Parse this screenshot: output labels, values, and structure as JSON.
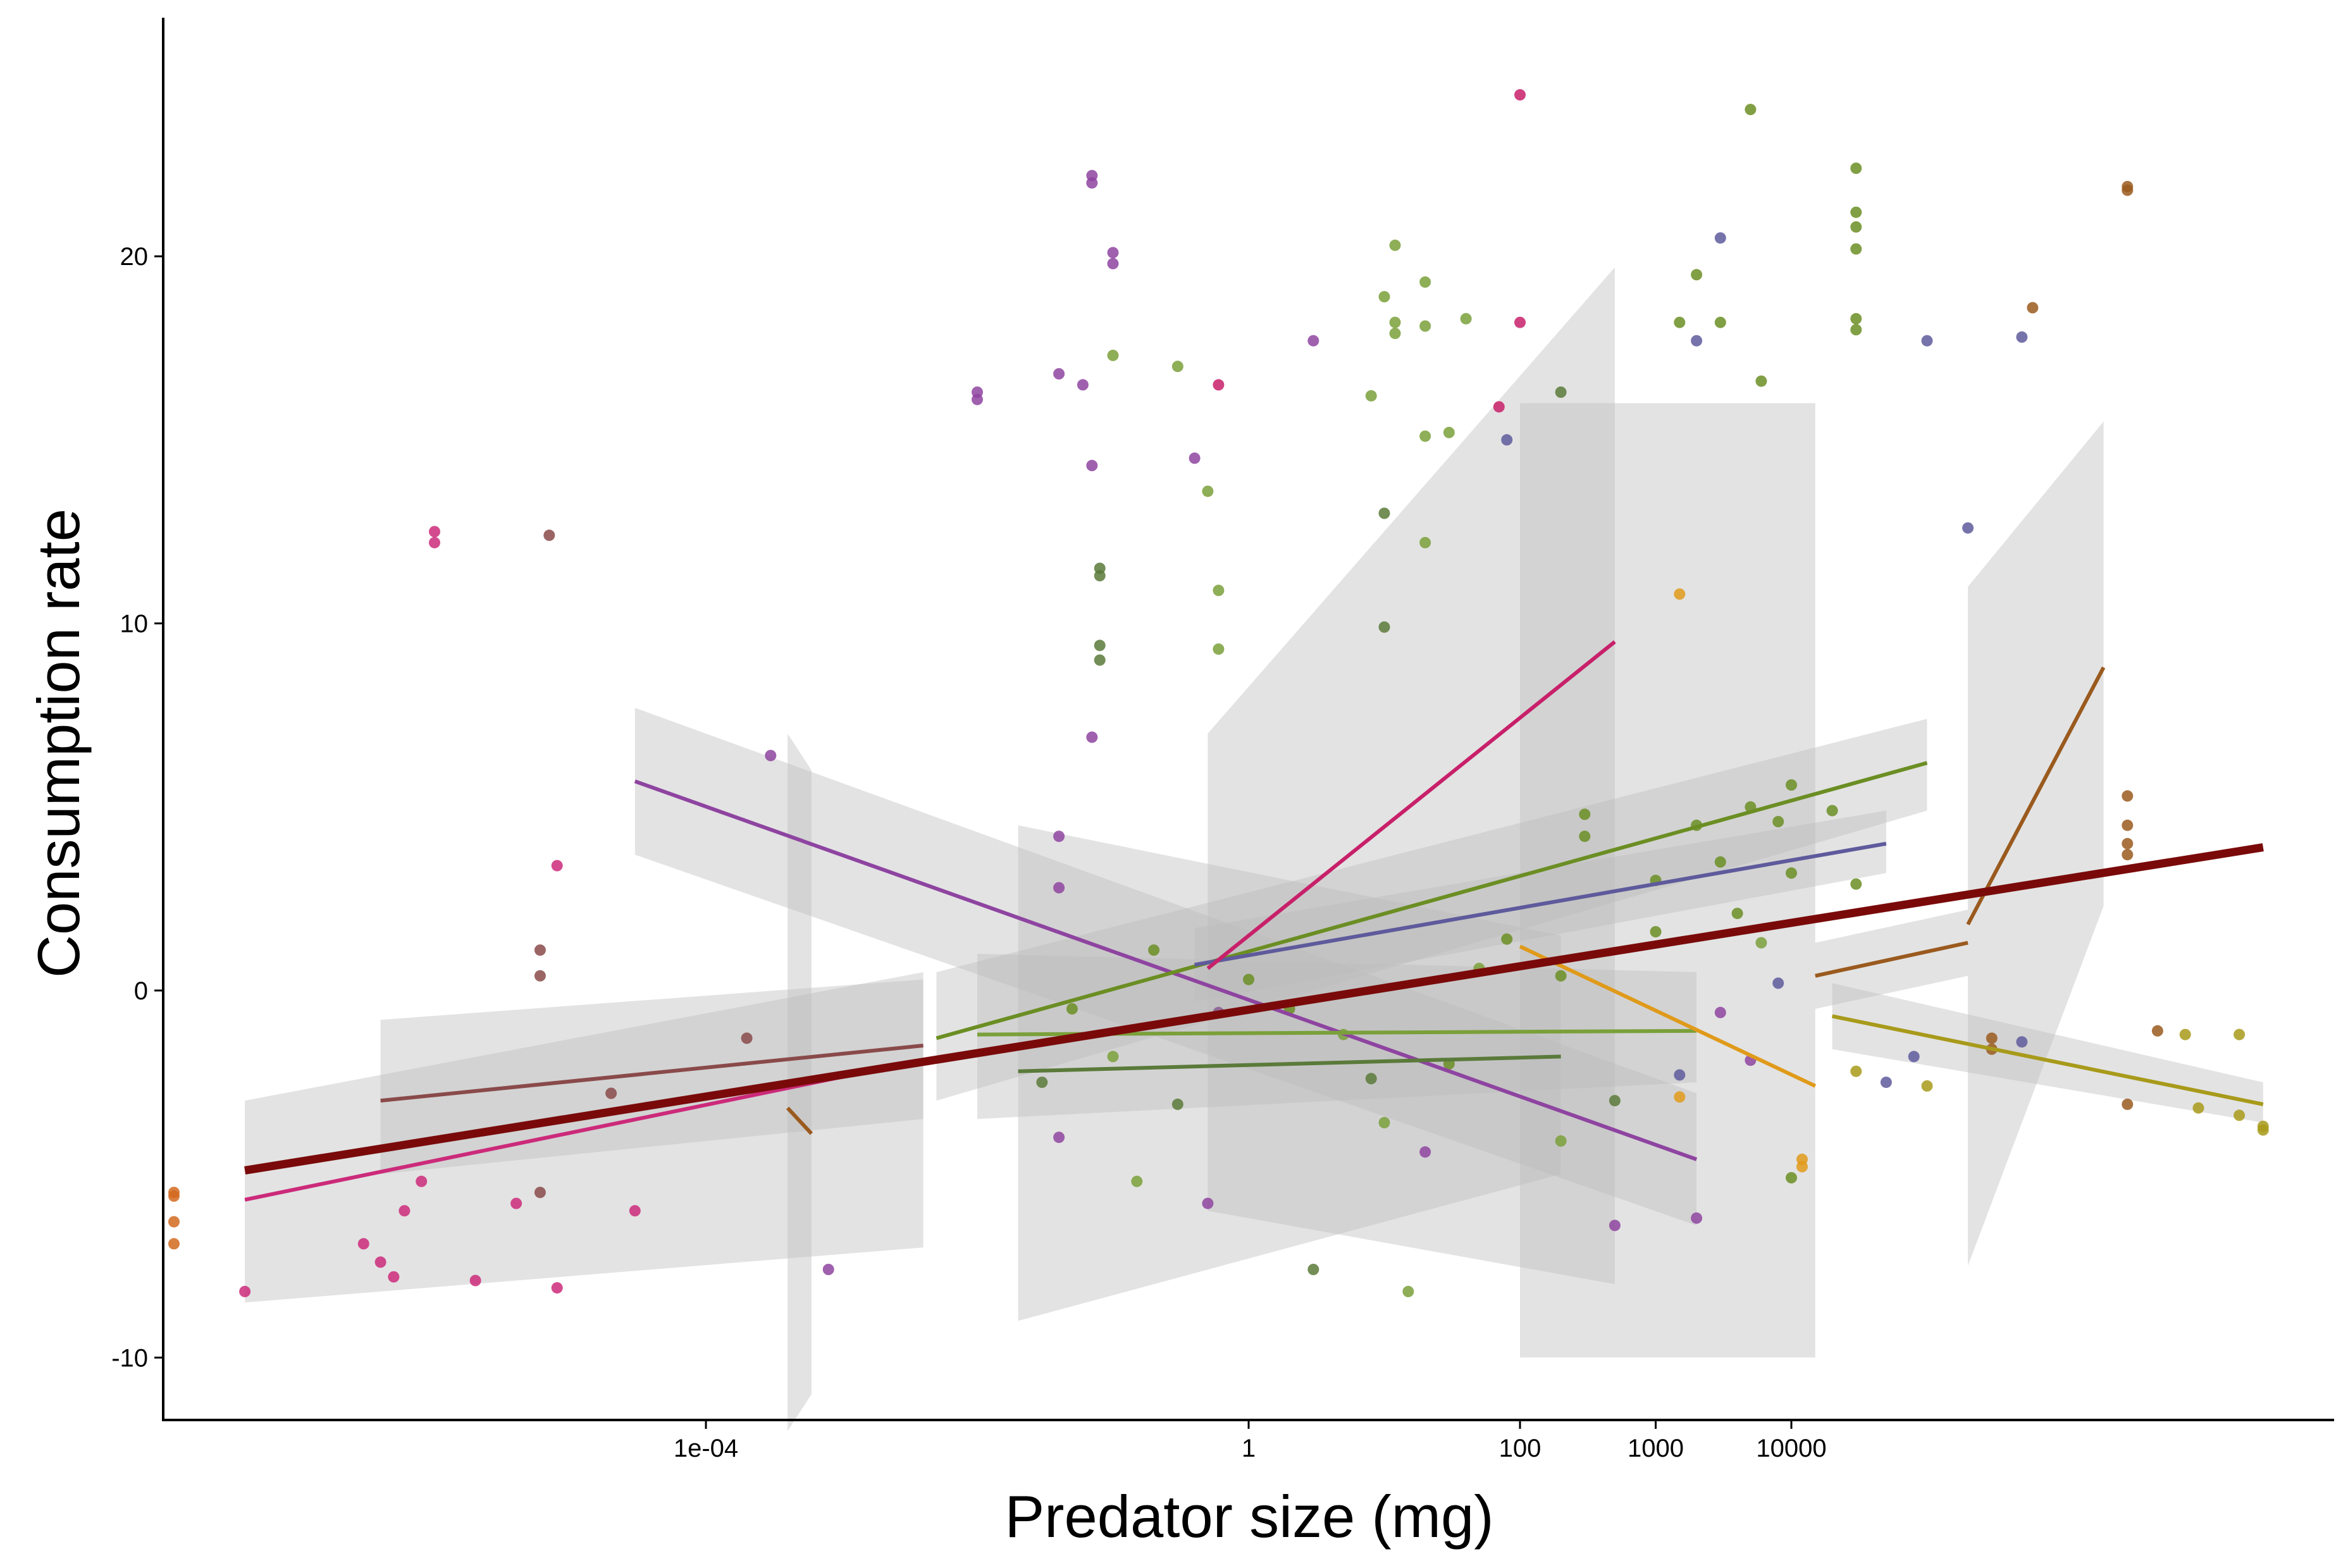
{
  "chart_data": {
    "type": "scatter",
    "title": "",
    "xlabel": "Predator size (mg)",
    "ylabel": "Consumption rate",
    "x_scale": "log10",
    "xlim": [
      1e-08,
      100000000.0
    ],
    "ylim": [
      -11.7,
      26.5
    ],
    "x_ticks": [
      0.0001,
      1,
      100,
      1000,
      10000
    ],
    "x_tick_labels": [
      "1e-04",
      "1",
      "100",
      "1000",
      "10000"
    ],
    "y_ticks": [
      -10,
      0,
      10,
      20
    ],
    "y_tick_labels": [
      "-10",
      "0",
      "10",
      "20"
    ],
    "grid": false,
    "legend": "none",
    "colors": {
      "overall": "#7a0a0a",
      "ribbon": "#bdbdbd",
      "magenta": "#cc2a7a",
      "purple": "#8e44a0",
      "plum": "#8a5a8e",
      "olive_green": "#6b8e23",
      "dark_green": "#5a7a3a",
      "slate_blue": "#5e5a9c",
      "orange": "#e09a1a",
      "brown": "#9a5a1e",
      "mustard": "#a89a1a",
      "rose_brown": "#8a4a4a",
      "pink_red": "#c8206a",
      "moss": "#7aa03a"
    },
    "overall_fit": {
      "x": [
        4e-08,
        30000000.0
      ],
      "y": [
        -4.9,
        3.9
      ],
      "color": "#7a0a0a"
    },
    "fit_lines": [
      {
        "x": [
          4e-08,
          0.004
        ],
        "y": [
          -5.7,
          -1.9
        ],
        "color": "#cc2a7a",
        "ci_low": [
          -8.5,
          -7.0
        ],
        "ci_high": [
          -3.0,
          0.5
        ]
      },
      {
        "x": [
          4e-07,
          0.004
        ],
        "y": [
          -3.0,
          -1.5
        ],
        "color": "#8a4a4a",
        "ci_low": [
          -5.0,
          -3.5
        ],
        "ci_high": [
          -0.8,
          0.3
        ]
      },
      {
        "x": [
          3e-05,
          2000
        ],
        "y": [
          5.7,
          -4.6
        ],
        "color": "#8e44a0",
        "ci_low": [
          3.7,
          -6.4
        ],
        "ci_high": [
          7.7,
          -2.8
        ]
      },
      {
        "x": [
          0.0004,
          0.0006
        ],
        "y": [
          -3.2,
          -3.9
        ],
        "color": "#9a5a1e",
        "ci_low": [
          -12.0,
          -11.0
        ],
        "ci_high": [
          7.0,
          6.0
        ]
      },
      {
        "x": [
          0.005,
          100000
        ],
        "y": [
          -1.3,
          6.2
        ],
        "color": "#6b8e23",
        "ci_low": [
          -3.0,
          4.9
        ],
        "ci_high": [
          0.5,
          7.4
        ]
      },
      {
        "x": [
          0.01,
          2000
        ],
        "y": [
          -1.2,
          -1.1
        ],
        "color": "#7aa03a",
        "ci_low": [
          -3.5,
          -2.5
        ],
        "ci_high": [
          1.0,
          0.5
        ]
      },
      {
        "x": [
          0.02,
          200
        ],
        "y": [
          -2.2,
          -1.8
        ],
        "color": "#5a7a3a",
        "ci_low": [
          -9.0,
          -5.0
        ],
        "ci_high": [
          4.5,
          1.5
        ]
      },
      {
        "x": [
          0.4,
          50000
        ],
        "y": [
          0.7,
          4.0
        ],
        "color": "#5e5a9c",
        "ci_low": [
          -0.3,
          3.2
        ],
        "ci_high": [
          1.7,
          4.9
        ]
      },
      {
        "x": [
          0.5,
          500
        ],
        "y": [
          0.6,
          9.5
        ],
        "color": "#c8206a",
        "ci_low": [
          -6.0,
          -8.0
        ],
        "ci_high": [
          7.0,
          19.7
        ]
      },
      {
        "x": [
          100,
          15000
        ],
        "y": [
          1.2,
          -2.6
        ],
        "color": "#e09a1a",
        "ci_low": [
          -10.0,
          -10.0
        ],
        "ci_high": [
          16.0,
          16.0
        ]
      },
      {
        "x": [
          15000,
          200000
        ],
        "y": [
          0.4,
          1.3
        ],
        "color": "#9a5a1e",
        "ci_low": [
          -0.5,
          0.4
        ],
        "ci_high": [
          1.3,
          2.2
        ]
      },
      {
        "x": [
          20000,
          30000000.0
        ],
        "y": [
          -0.7,
          -3.1
        ],
        "color": "#a89a1a",
        "ci_low": [
          -1.6,
          -3.6
        ],
        "ci_high": [
          0.2,
          -2.5
        ]
      },
      {
        "x": [
          200000,
          2000000
        ],
        "y": [
          1.8,
          8.8
        ],
        "color": "#9a5a1e",
        "ci_low": [
          -7.5,
          2.3
        ],
        "ci_high": [
          11.0,
          15.5
        ]
      }
    ],
    "points": [
      {
        "x": 1.2e-08,
        "y": -5.6,
        "color": "#d2691e"
      },
      {
        "x": 1.2e-08,
        "y": -5.5,
        "color": "#d2691e"
      },
      {
        "x": 1.2e-08,
        "y": -6.3,
        "color": "#d2691e"
      },
      {
        "x": 1.2e-08,
        "y": -6.9,
        "color": "#d2691e"
      },
      {
        "x": 4e-08,
        "y": -8.2,
        "color": "#cc2a7a"
      },
      {
        "x": 3e-07,
        "y": -6.9,
        "color": "#cc2a7a"
      },
      {
        "x": 4e-07,
        "y": -7.4,
        "color": "#cc2a7a"
      },
      {
        "x": 5e-07,
        "y": -7.8,
        "color": "#cc2a7a"
      },
      {
        "x": 6e-07,
        "y": -6.0,
        "color": "#cc2a7a"
      },
      {
        "x": 8e-07,
        "y": -5.2,
        "color": "#cc2a7a"
      },
      {
        "x": 1e-06,
        "y": 12.5,
        "color": "#cc2a7a"
      },
      {
        "x": 1e-06,
        "y": 12.2,
        "color": "#cc2a7a"
      },
      {
        "x": 2e-06,
        "y": -7.9,
        "color": "#cc2a7a"
      },
      {
        "x": 4e-06,
        "y": -5.8,
        "color": "#cc2a7a"
      },
      {
        "x": 8e-06,
        "y": -8.1,
        "color": "#cc2a7a"
      },
      {
        "x": 8e-06,
        "y": 3.4,
        "color": "#cc2a7a"
      },
      {
        "x": 3e-05,
        "y": -6.0,
        "color": "#cc2a7a"
      },
      {
        "x": 7e-06,
        "y": 12.4,
        "color": "#8a4a4a"
      },
      {
        "x": 6e-06,
        "y": 1.1,
        "color": "#8a4a4a"
      },
      {
        "x": 6e-06,
        "y": 0.4,
        "color": "#8a4a4a"
      },
      {
        "x": 6e-06,
        "y": -5.5,
        "color": "#8a4a4a"
      },
      {
        "x": 2e-05,
        "y": -2.8,
        "color": "#8a4a4a"
      },
      {
        "x": 0.0002,
        "y": -1.3,
        "color": "#8a4a4a"
      },
      {
        "x": 0.0003,
        "y": 6.4,
        "color": "#8e44a0"
      },
      {
        "x": 0.0008,
        "y": -7.6,
        "color": "#8e44a0"
      },
      {
        "x": 0.01,
        "y": 16.3,
        "color": "#8e44a0"
      },
      {
        "x": 0.01,
        "y": 16.1,
        "color": "#8e44a0"
      },
      {
        "x": 0.04,
        "y": 16.8,
        "color": "#8e44a0"
      },
      {
        "x": 0.07,
        "y": 22.2,
        "color": "#8e44a0"
      },
      {
        "x": 0.07,
        "y": 22.0,
        "color": "#8e44a0"
      },
      {
        "x": 0.1,
        "y": 20.1,
        "color": "#8e44a0"
      },
      {
        "x": 0.1,
        "y": 19.8,
        "color": "#8e44a0"
      },
      {
        "x": 0.06,
        "y": 16.5,
        "color": "#8e44a0"
      },
      {
        "x": 0.07,
        "y": 14.3,
        "color": "#8e44a0"
      },
      {
        "x": 0.4,
        "y": 14.5,
        "color": "#8e44a0"
      },
      {
        "x": 0.6,
        "y": 16.5,
        "color": "#c8206a"
      },
      {
        "x": 0.07,
        "y": 6.9,
        "color": "#8e44a0"
      },
      {
        "x": 0.04,
        "y": 4.2,
        "color": "#8e44a0"
      },
      {
        "x": 0.04,
        "y": 2.8,
        "color": "#8e44a0"
      },
      {
        "x": 3,
        "y": 17.7,
        "color": "#8e44a0"
      },
      {
        "x": 100,
        "y": 24.4,
        "color": "#c8206a"
      },
      {
        "x": 100,
        "y": 18.2,
        "color": "#c8206a"
      },
      {
        "x": 70,
        "y": 15.9,
        "color": "#c8206a"
      },
      {
        "x": 80,
        "y": 15.0,
        "color": "#5e5a9c"
      },
      {
        "x": 3000,
        "y": 20.5,
        "color": "#5e5a9c"
      },
      {
        "x": 2000,
        "y": 17.7,
        "color": "#5e5a9c"
      },
      {
        "x": 100000,
        "y": 17.7,
        "color": "#5e5a9c"
      },
      {
        "x": 500000,
        "y": 17.8,
        "color": "#5e5a9c"
      },
      {
        "x": 200000,
        "y": 12.6,
        "color": "#5e5a9c"
      },
      {
        "x": 1500,
        "y": 10.8,
        "color": "#e09a1a"
      },
      {
        "x": 600000,
        "y": 18.6,
        "color": "#9a5a1e"
      },
      {
        "x": 3000000,
        "y": 21.9,
        "color": "#9a5a1e"
      },
      {
        "x": 3000000,
        "y": 21.8,
        "color": "#9a5a1e"
      },
      {
        "x": 0.08,
        "y": 11.5,
        "color": "#5a7a3a"
      },
      {
        "x": 0.08,
        "y": 11.3,
        "color": "#5a7a3a"
      },
      {
        "x": 0.08,
        "y": 9.4,
        "color": "#5a7a3a"
      },
      {
        "x": 0.08,
        "y": 9.0,
        "color": "#5a7a3a"
      },
      {
        "x": 0.1,
        "y": 17.3,
        "color": "#7aa03a"
      },
      {
        "x": 0.3,
        "y": 17.0,
        "color": "#7aa03a"
      },
      {
        "x": 0.5,
        "y": 13.6,
        "color": "#7aa03a"
      },
      {
        "x": 0.6,
        "y": 10.9,
        "color": "#7aa03a"
      },
      {
        "x": 0.6,
        "y": 9.3,
        "color": "#7aa03a"
      },
      {
        "x": 10,
        "y": 18.9,
        "color": "#7aa03a"
      },
      {
        "x": 12,
        "y": 18.2,
        "color": "#7aa03a"
      },
      {
        "x": 12,
        "y": 17.9,
        "color": "#7aa03a"
      },
      {
        "x": 20,
        "y": 19.3,
        "color": "#7aa03a"
      },
      {
        "x": 20,
        "y": 18.1,
        "color": "#7aa03a"
      },
      {
        "x": 40,
        "y": 18.3,
        "color": "#7aa03a"
      },
      {
        "x": 12,
        "y": 20.3,
        "color": "#7aa03a"
      },
      {
        "x": 8,
        "y": 16.2,
        "color": "#7aa03a"
      },
      {
        "x": 20,
        "y": 15.1,
        "color": "#7aa03a"
      },
      {
        "x": 30,
        "y": 15.2,
        "color": "#7aa03a"
      },
      {
        "x": 10,
        "y": 13.0,
        "color": "#5a7a3a"
      },
      {
        "x": 20,
        "y": 12.2,
        "color": "#7aa03a"
      },
      {
        "x": 10,
        "y": 9.9,
        "color": "#5a7a3a"
      },
      {
        "x": 200,
        "y": 16.3,
        "color": "#5a7a3a"
      },
      {
        "x": 1500,
        "y": 18.2,
        "color": "#6b8e23"
      },
      {
        "x": 2000,
        "y": 19.5,
        "color": "#6b8e23"
      },
      {
        "x": 3000,
        "y": 18.2,
        "color": "#6b8e23"
      },
      {
        "x": 5000,
        "y": 24.0,
        "color": "#6b8e23"
      },
      {
        "x": 6000,
        "y": 16.6,
        "color": "#6b8e23"
      },
      {
        "x": 30000,
        "y": 22.4,
        "color": "#6b8e23"
      },
      {
        "x": 30000,
        "y": 21.2,
        "color": "#6b8e23"
      },
      {
        "x": 30000,
        "y": 20.8,
        "color": "#6b8e23"
      },
      {
        "x": 30000,
        "y": 20.2,
        "color": "#6b8e23"
      },
      {
        "x": 30000,
        "y": 18.3,
        "color": "#6b8e23"
      },
      {
        "x": 30000,
        "y": 18.0,
        "color": "#6b8e23"
      },
      {
        "x": 12000,
        "y": -4.6,
        "color": "#e09a1a"
      },
      {
        "x": 12000,
        "y": -4.8,
        "color": "#e09a1a"
      },
      {
        "x": 1500,
        "y": -2.9,
        "color": "#e09a1a"
      },
      {
        "x": 3000000,
        "y": 5.3,
        "color": "#9a5a1e"
      },
      {
        "x": 3000000,
        "y": 4.5,
        "color": "#9a5a1e"
      },
      {
        "x": 3000000,
        "y": 4.0,
        "color": "#9a5a1e"
      },
      {
        "x": 3000000,
        "y": 3.7,
        "color": "#9a5a1e"
      },
      {
        "x": 5000000,
        "y": -1.1,
        "color": "#9a5a1e"
      },
      {
        "x": 3000000,
        "y": -3.1,
        "color": "#9a5a1e"
      },
      {
        "x": 300000,
        "y": -1.6,
        "color": "#9a5a1e"
      },
      {
        "x": 300000,
        "y": -1.3,
        "color": "#9a5a1e"
      },
      {
        "x": 8000000,
        "y": -1.2,
        "color": "#a89a1a"
      },
      {
        "x": 20000000.0,
        "y": -1.2,
        "color": "#a89a1a"
      },
      {
        "x": 10000000.0,
        "y": -3.2,
        "color": "#a89a1a"
      },
      {
        "x": 30000000.0,
        "y": -3.7,
        "color": "#a89a1a"
      },
      {
        "x": 30000000.0,
        "y": -3.8,
        "color": "#a89a1a"
      },
      {
        "x": 20000000.0,
        "y": -3.4,
        "color": "#a89a1a"
      },
      {
        "x": 30000,
        "y": -2.2,
        "color": "#a89a1a"
      },
      {
        "x": 100000,
        "y": -2.6,
        "color": "#a89a1a"
      },
      {
        "x": 500000,
        "y": -1.4,
        "color": "#5e5a9c"
      },
      {
        "x": 80000,
        "y": -1.8,
        "color": "#5e5a9c"
      },
      {
        "x": 50000,
        "y": -2.5,
        "color": "#5e5a9c"
      },
      {
        "x": 0.15,
        "y": -5.2,
        "color": "#7aa03a"
      },
      {
        "x": 3,
        "y": -7.6,
        "color": "#5a7a3a"
      },
      {
        "x": 15,
        "y": -8.2,
        "color": "#7aa03a"
      },
      {
        "x": 500,
        "y": -6.4,
        "color": "#8e44a0"
      },
      {
        "x": 2000,
        "y": -6.2,
        "color": "#8e44a0"
      },
      {
        "x": 10000,
        "y": -5.1,
        "color": "#6b8e23"
      },
      {
        "x": 0.04,
        "y": -4.0,
        "color": "#8e44a0"
      },
      {
        "x": 0.5,
        "y": -5.8,
        "color": "#8e44a0"
      },
      {
        "x": 1,
        "y": 0.3,
        "color": "#6b8e23"
      },
      {
        "x": 2,
        "y": -0.5,
        "color": "#6b8e23"
      },
      {
        "x": 5,
        "y": -1.2,
        "color": "#7aa03a"
      },
      {
        "x": 8,
        "y": -2.4,
        "color": "#5a7a3a"
      },
      {
        "x": 10,
        "y": -3.6,
        "color": "#7aa03a"
      },
      {
        "x": 20,
        "y": -4.4,
        "color": "#8e44a0"
      },
      {
        "x": 30,
        "y": -2.0,
        "color": "#6b8e23"
      },
      {
        "x": 50,
        "y": 0.6,
        "color": "#7aa03a"
      },
      {
        "x": 80,
        "y": 1.4,
        "color": "#6b8e23"
      },
      {
        "x": 0.2,
        "y": 1.1,
        "color": "#6b8e23"
      },
      {
        "x": 0.1,
        "y": -1.8,
        "color": "#7aa03a"
      },
      {
        "x": 0.3,
        "y": -3.1,
        "color": "#5a7a3a"
      },
      {
        "x": 0.6,
        "y": -0.6,
        "color": "#8a5a8e"
      },
      {
        "x": 0.05,
        "y": -0.5,
        "color": "#6b8e23"
      },
      {
        "x": 0.03,
        "y": -2.5,
        "color": "#5a7a3a"
      },
      {
        "x": 300,
        "y": 4.8,
        "color": "#6b8e23"
      },
      {
        "x": 300,
        "y": 4.2,
        "color": "#6b8e23"
      },
      {
        "x": 1000,
        "y": 3.0,
        "color": "#6b8e23"
      },
      {
        "x": 2000,
        "y": 4.5,
        "color": "#6b8e23"
      },
      {
        "x": 3000,
        "y": 3.5,
        "color": "#6b8e23"
      },
      {
        "x": 5000,
        "y": 5.0,
        "color": "#6b8e23"
      },
      {
        "x": 8000,
        "y": 4.6,
        "color": "#6b8e23"
      },
      {
        "x": 10000,
        "y": 5.6,
        "color": "#6b8e23"
      },
      {
        "x": 10000,
        "y": 3.2,
        "color": "#6b8e23"
      },
      {
        "x": 4000,
        "y": 2.1,
        "color": "#6b8e23"
      },
      {
        "x": 1000,
        "y": 1.6,
        "color": "#6b8e23"
      },
      {
        "x": 200,
        "y": 0.4,
        "color": "#6b8e23"
      },
      {
        "x": 20000,
        "y": 4.9,
        "color": "#6b8e23"
      },
      {
        "x": 30000,
        "y": 2.9,
        "color": "#6b8e23"
      },
      {
        "x": 6000,
        "y": 1.3,
        "color": "#7aa03a"
      },
      {
        "x": 8000,
        "y": 0.2,
        "color": "#5e5a9c"
      },
      {
        "x": 3000,
        "y": -0.6,
        "color": "#8e44a0"
      },
      {
        "x": 5000,
        "y": -1.9,
        "color": "#8e44a0"
      },
      {
        "x": 1500,
        "y": -2.3,
        "color": "#5e5a9c"
      },
      {
        "x": 500,
        "y": -3.0,
        "color": "#5a7a3a"
      },
      {
        "x": 200,
        "y": -4.1,
        "color": "#7aa03a"
      }
    ]
  }
}
